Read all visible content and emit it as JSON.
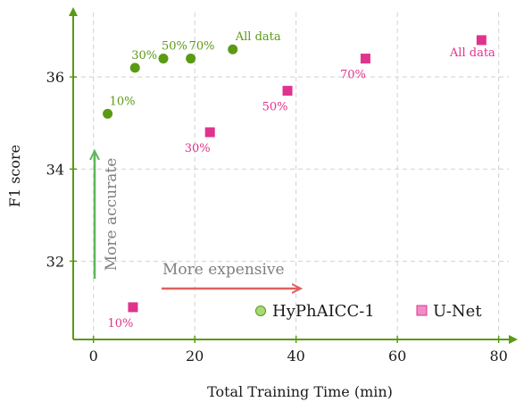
{
  "chart_data": {
    "type": "scatter",
    "xlabel": "Total Training Time (min)",
    "ylabel": "F1 score",
    "xlim": [
      -4,
      82
    ],
    "ylim": [
      30.3,
      37.4
    ],
    "xticks": [
      0,
      20,
      40,
      60,
      80
    ],
    "yticks": [
      32,
      34,
      36
    ],
    "grid": true,
    "legend_position": "bottom-right",
    "series": [
      {
        "name": "HyPhAICC-1",
        "marker": "circle",
        "color": "#5a9a14",
        "points": [
          {
            "x": 2.8,
            "y": 35.2,
            "label": "10%"
          },
          {
            "x": 8.2,
            "y": 36.2,
            "label": "30%"
          },
          {
            "x": 13.8,
            "y": 36.4,
            "label": "50%"
          },
          {
            "x": 19.2,
            "y": 36.4,
            "label": "70%"
          },
          {
            "x": 27.5,
            "y": 36.6,
            "label": "All data"
          }
        ]
      },
      {
        "name": "U-Net",
        "marker": "square",
        "color": "#e0338e",
        "points": [
          {
            "x": 7.8,
            "y": 31.0,
            "label": "10%"
          },
          {
            "x": 23.0,
            "y": 34.8,
            "label": "30%"
          },
          {
            "x": 38.3,
            "y": 35.7,
            "label": "50%"
          },
          {
            "x": 53.7,
            "y": 36.4,
            "label": "70%"
          },
          {
            "x": 76.6,
            "y": 36.8,
            "label": "All data"
          }
        ]
      }
    ],
    "annotations": [
      {
        "text": "More accurate",
        "direction": "up",
        "color": "#5cb85c"
      },
      {
        "text": "More expensive",
        "direction": "right",
        "color": "#e06060"
      }
    ],
    "colors": {
      "axis": "#5a9a14",
      "grid": "#d0d0d0",
      "legend_circle_fill": "#a8d878",
      "legend_square_fill": "#f08cc8"
    }
  }
}
